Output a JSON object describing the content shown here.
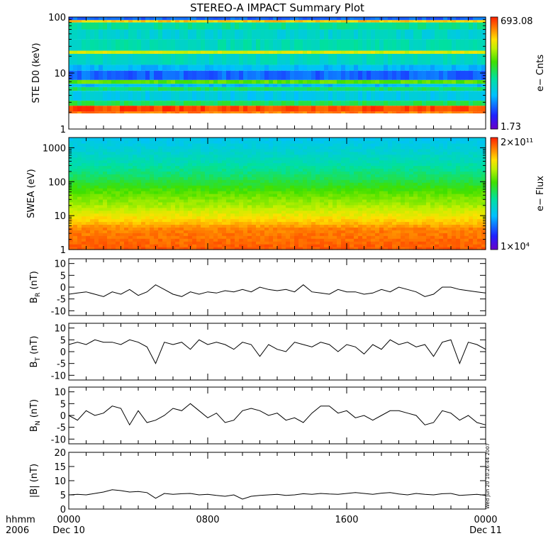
{
  "figure": {
    "title": "STEREO-A IMPACT Summary Plot",
    "time_axis": {
      "prefix_top": "hhmm",
      "prefix_bottom": "2006",
      "ticks": [
        {
          "hour": 0,
          "label": "0000",
          "date": "Dec 10"
        },
        {
          "hour": 8,
          "label": "0800",
          "date": ""
        },
        {
          "hour": 16,
          "label": "1600",
          "date": ""
        },
        {
          "hour": 24,
          "label": "0000",
          "date": "Dec 11"
        }
      ],
      "range_hours": [
        0,
        24
      ]
    },
    "timestamp": "Wed Jun 20 10:26:44 2007"
  },
  "chart_data": [
    {
      "type": "heatmap",
      "id": "ste",
      "ylabel": "STE D0 (keV)",
      "yscale": "log",
      "ylim": [
        1,
        100
      ],
      "yticks": [
        {
          "value": 1,
          "label": "1"
        },
        {
          "value": 10,
          "label": "10"
        },
        {
          "value": 100,
          "label": "100"
        }
      ],
      "colorbar": {
        "label": "e− Cnts",
        "max_label": "693.08",
        "min_label": "1.73",
        "max": 693.08,
        "min": 1.73
      },
      "energy_bands": [
        {
          "from": 100,
          "to": 88,
          "level": 0.2
        },
        {
          "from": 88,
          "to": 80,
          "level": 0.82
        },
        {
          "from": 80,
          "to": 60,
          "level": 0.45
        },
        {
          "from": 60,
          "to": 40,
          "level": 0.38
        },
        {
          "from": 40,
          "to": 25,
          "level": 0.42
        },
        {
          "from": 25,
          "to": 22,
          "level": 0.75
        },
        {
          "from": 22,
          "to": 14,
          "level": 0.4
        },
        {
          "from": 14,
          "to": 11,
          "level": 0.3
        },
        {
          "from": 11,
          "to": 7.5,
          "level": 0.2
        },
        {
          "from": 7.5,
          "to": 6.4,
          "level": 0.62
        },
        {
          "from": 6.4,
          "to": 5.6,
          "level": 0.3
        },
        {
          "from": 5.6,
          "to": 4.8,
          "level": 0.5
        },
        {
          "from": 4.8,
          "to": 3.2,
          "level": 0.34
        },
        {
          "from": 3.2,
          "to": 2.6,
          "level": 0.52
        },
        {
          "from": 2.6,
          "to": 2.05,
          "level": 0.96
        },
        {
          "from": 2.05,
          "to": 1.9,
          "level": 0.9
        },
        {
          "from": 1.9,
          "to": 1,
          "level": null
        }
      ]
    },
    {
      "type": "heatmap",
      "id": "swea",
      "ylabel": "SWEA (eV)",
      "yscale": "log",
      "ylim": [
        1,
        2000
      ],
      "yticks": [
        {
          "value": 1,
          "label": "1"
        },
        {
          "value": 10,
          "label": "10"
        },
        {
          "value": 100,
          "label": "100"
        },
        {
          "value": 1000,
          "label": "1000"
        }
      ],
      "colorbar": {
        "label": "e− Flux",
        "max_label": "2×10¹¹",
        "min_label": "1×10⁴",
        "max": 200000000000.0,
        "min": 10000.0
      },
      "spectrum_levels": [
        {
          "energy": 1,
          "level": 0.94
        },
        {
          "energy": 4,
          "level": 0.9
        },
        {
          "energy": 7,
          "level": 0.82
        },
        {
          "energy": 20,
          "level": 0.7
        },
        {
          "energy": 50,
          "level": 0.62
        },
        {
          "energy": 150,
          "level": 0.5
        },
        {
          "energy": 400,
          "level": 0.42
        },
        {
          "energy": 1000,
          "level": 0.36
        },
        {
          "energy": 2000,
          "level": 0.32
        }
      ]
    },
    {
      "type": "line",
      "id": "br",
      "ylabel": "B_R (nT)",
      "ylim": [
        -12,
        12
      ],
      "yticks": [
        10,
        5,
        0,
        -5,
        -10
      ],
      "x": [
        0,
        0.5,
        1,
        1.5,
        2,
        2.5,
        3,
        3.5,
        4,
        4.5,
        5,
        5.5,
        6,
        6.5,
        7,
        7.5,
        8,
        8.5,
        9,
        9.5,
        10,
        10.5,
        11,
        11.5,
        12,
        12.5,
        13,
        13.5,
        14,
        14.5,
        15,
        15.5,
        16,
        16.5,
        17,
        17.5,
        18,
        18.5,
        19,
        19.5,
        20,
        20.5,
        21,
        21.5,
        22,
        22.5,
        23,
        23.5,
        24
      ],
      "values": [
        -3,
        -2.5,
        -2,
        -3,
        -4,
        -2,
        -3,
        -1,
        -3.5,
        -2,
        1,
        -1,
        -3,
        -4,
        -2,
        -3,
        -2,
        -2.5,
        -1.5,
        -2,
        -1,
        -2,
        0,
        -1,
        -1.5,
        -1,
        -2,
        1,
        -2,
        -2.5,
        -3,
        -1,
        -2,
        -2,
        -3,
        -2.5,
        -1,
        -2,
        0,
        -1,
        -2,
        -4,
        -3,
        0,
        0,
        -1,
        -1.5,
        -2,
        -2.5
      ]
    },
    {
      "type": "line",
      "id": "bt",
      "ylabel": "B_T (nT)",
      "ylim": [
        -12,
        12
      ],
      "yticks": [
        10,
        5,
        0,
        -5,
        -10
      ],
      "x": [
        0,
        0.5,
        1,
        1.5,
        2,
        2.5,
        3,
        3.5,
        4,
        4.5,
        5,
        5.5,
        6,
        6.5,
        7,
        7.5,
        8,
        8.5,
        9,
        9.5,
        10,
        10.5,
        11,
        11.5,
        12,
        12.5,
        13,
        13.5,
        14,
        14.5,
        15,
        15.5,
        16,
        16.5,
        17,
        17.5,
        18,
        18.5,
        19,
        19.5,
        20,
        20.5,
        21,
        21.5,
        22,
        22.5,
        23,
        23.5,
        24
      ],
      "values": [
        3,
        4,
        3,
        5,
        4,
        4,
        3,
        5,
        4,
        2,
        -5,
        4,
        3,
        4,
        1,
        5,
        3,
        4,
        3,
        1,
        4,
        3,
        -2,
        3,
        1,
        0,
        4,
        3,
        2,
        4,
        3,
        0,
        3,
        2,
        -1,
        3,
        1,
        5,
        3,
        4,
        2,
        3,
        -2,
        4,
        5,
        -5,
        4,
        3,
        1
      ]
    },
    {
      "type": "line",
      "id": "bn",
      "ylabel": "B_N (nT)",
      "ylim": [
        -12,
        12
      ],
      "yticks": [
        10,
        5,
        0,
        -5,
        -10
      ],
      "x": [
        0,
        0.5,
        1,
        1.5,
        2,
        2.5,
        3,
        3.5,
        4,
        4.5,
        5,
        5.5,
        6,
        6.5,
        7,
        7.5,
        8,
        8.5,
        9,
        9.5,
        10,
        10.5,
        11,
        11.5,
        12,
        12.5,
        13,
        13.5,
        14,
        14.5,
        15,
        15.5,
        16,
        16.5,
        17,
        17.5,
        18,
        18.5,
        19,
        19.5,
        20,
        20.5,
        21,
        21.5,
        22,
        22.5,
        23,
        23.5,
        24
      ],
      "values": [
        0,
        -2,
        2,
        0,
        1,
        4,
        3,
        -4,
        2,
        -3,
        -2,
        0,
        3,
        2,
        5,
        2,
        -1,
        1,
        -3,
        -2,
        2,
        3,
        2,
        0,
        1,
        -2,
        -1,
        -3,
        1,
        4,
        4,
        1,
        2,
        -1,
        0,
        -2,
        0,
        2,
        2,
        1,
        0,
        -4,
        -3,
        2,
        1,
        -2,
        0,
        -3,
        -4
      ]
    },
    {
      "type": "line",
      "id": "bmag",
      "ylabel": "|B| (nT)",
      "ylim": [
        0,
        20
      ],
      "yticks": [
        20,
        15,
        10,
        5,
        0
      ],
      "x": [
        0,
        0.5,
        1,
        1.5,
        2,
        2.5,
        3,
        3.5,
        4,
        4.5,
        5,
        5.5,
        6,
        6.5,
        7,
        7.5,
        8,
        8.5,
        9,
        9.5,
        10,
        10.5,
        11,
        11.5,
        12,
        12.5,
        13,
        13.5,
        14,
        14.5,
        15,
        15.5,
        16,
        16.5,
        17,
        17.5,
        18,
        18.5,
        19,
        19.5,
        20,
        20.5,
        21,
        21.5,
        22,
        22.5,
        23,
        23.5,
        24
      ],
      "values": [
        5,
        5.2,
        5,
        5.5,
        6,
        6.8,
        6.5,
        6,
        6.2,
        5.8,
        3.8,
        5.5,
        5.2,
        5.4,
        5.5,
        5,
        5.2,
        4.8,
        4.5,
        5,
        3.5,
        4.5,
        4.8,
        5,
        5.2,
        4.8,
        5,
        5.4,
        5.2,
        5.5,
        5.3,
        5.2,
        5.5,
        5.8,
        5.5,
        5.2,
        5.6,
        5.8,
        5.3,
        5,
        5.5,
        5.2,
        5,
        5.4,
        5.5,
        4.8,
        5,
        5.2,
        4.8
      ]
    }
  ]
}
